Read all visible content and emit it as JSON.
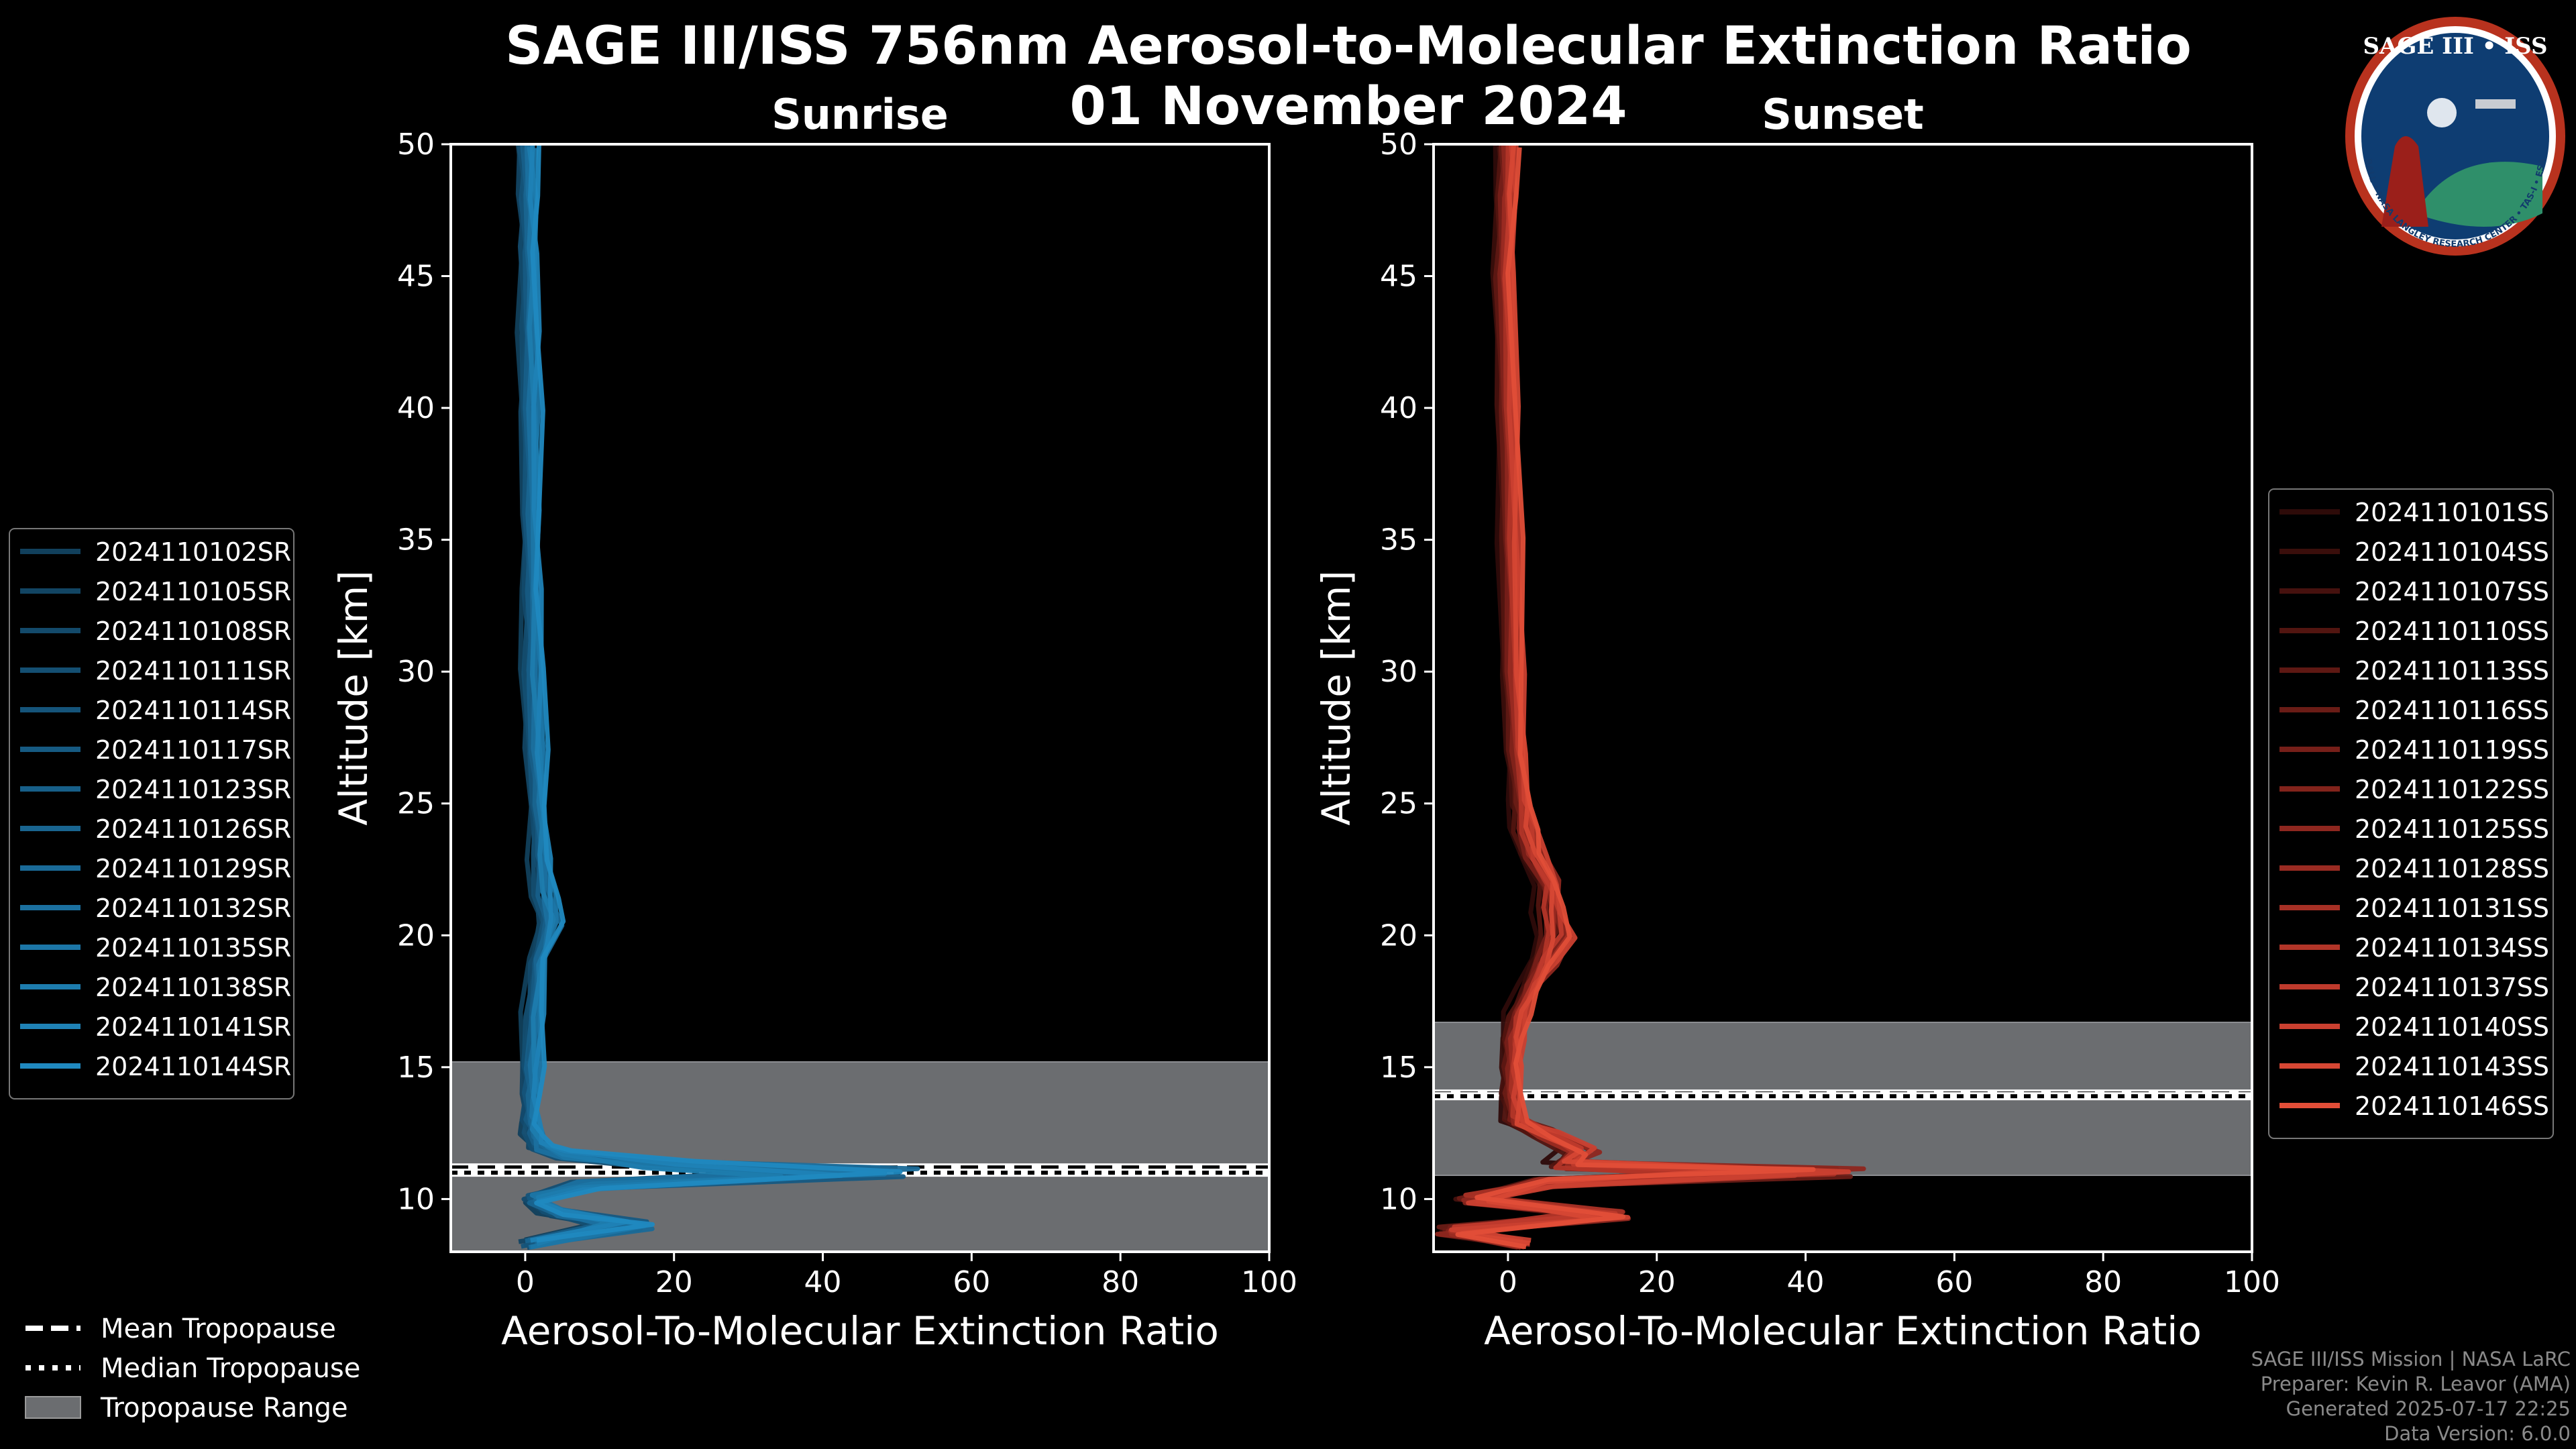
{
  "chart_data": {
    "title": "SAGE III/ISS 756nm Aerosol-to-Molecular Extinction Ratio",
    "subtitle": "01 November 2024",
    "panels": [
      {
        "name": "Sunrise",
        "type": "line",
        "xlabel": "Aerosol-To-Molecular Extinction Ratio",
        "ylabel": "Altitude [km]",
        "xlim": [
          -10,
          100
        ],
        "ylim": [
          8,
          50
        ],
        "xticks": [
          0,
          20,
          40,
          60,
          80,
          100
        ],
        "yticks": [
          10,
          15,
          20,
          25,
          30,
          35,
          40,
          45,
          50
        ],
        "tropopause_range": [
          8,
          15.2
        ],
        "mean_tropopause": 11.2,
        "median_tropopause": 11.0,
        "legend": [
          "2024110102SR",
          "2024110105SR",
          "2024110108SR",
          "2024110111SR",
          "2024110114SR",
          "2024110117SR",
          "2024110123SR",
          "2024110126SR",
          "2024110129SR",
          "2024110132SR",
          "2024110135SR",
          "2024110138SR",
          "2024110141SR",
          "2024110144SR"
        ],
        "series_colors": [
          "#11405c",
          "#124563",
          "#134a6b",
          "#144f72",
          "#15547a",
          "#165a82",
          "#175f89",
          "#196590",
          "#1a6a98",
          "#1b709f",
          "#1c76a7",
          "#1d7cae",
          "#1f82b6",
          "#2089c0"
        ],
        "profile": {
          "alt": [
            8.3,
            9.0,
            9.5,
            10.0,
            10.5,
            11.0,
            11.3,
            11.7,
            12.0,
            12.5,
            13.0,
            14.0,
            15.0,
            17.0,
            19.0,
            20.5,
            21.5,
            23.0,
            25.0,
            27.0,
            30.0,
            33.0,
            36.0,
            40.0,
            43.0,
            46.0,
            48.0,
            50.0
          ],
          "x": [
            0.5,
            14.0,
            4.0,
            1.0,
            8.0,
            44.0,
            20.0,
            5.0,
            2.0,
            1.2,
            0.8,
            0.9,
            1.0,
            1.3,
            1.8,
            3.5,
            2.8,
            2.2,
            1.8,
            1.5,
            1.2,
            1.0,
            0.9,
            0.8,
            0.7,
            0.6,
            0.5,
            0.4
          ]
        }
      },
      {
        "name": "Sunset",
        "type": "line",
        "xlabel": "Aerosol-To-Molecular Extinction Ratio",
        "ylabel": "Altitude [km]",
        "xlim": [
          -10,
          100
        ],
        "ylim": [
          8,
          50
        ],
        "xticks": [
          0,
          20,
          40,
          60,
          80,
          100
        ],
        "yticks": [
          10,
          15,
          20,
          25,
          30,
          35,
          40,
          45,
          50
        ],
        "tropopause_range": [
          10.9,
          16.7
        ],
        "mean_tropopause": 14.0,
        "median_tropopause": 13.9,
        "legend": [
          "2024110101SS",
          "2024110104SS",
          "2024110107SS",
          "2024110110SS",
          "2024110113SS",
          "2024110116SS",
          "2024110119SS",
          "2024110122SS",
          "2024110125SS",
          "2024110128SS",
          "2024110131SS",
          "2024110134SS",
          "2024110137SS",
          "2024110140SS",
          "2024110143SS",
          "2024110146SS"
        ],
        "series_colors": [
          "#2e0b09",
          "#3a0e0b",
          "#46110e",
          "#521510",
          "#5e1813",
          "#6a1c16",
          "#761f19",
          "#82231b",
          "#8e271f",
          "#9a2b22",
          "#a63025",
          "#b23528",
          "#be3a2c",
          "#ca4030",
          "#d64734",
          "#e24e38"
        ],
        "profile": {
          "alt": [
            8.3,
            8.8,
            9.4,
            10.0,
            10.6,
            11.0,
            11.3,
            11.8,
            12.5,
            13.0,
            14.0,
            15.0,
            16.0,
            17.0,
            18.0,
            19.0,
            20.0,
            21.0,
            22.0,
            23.0,
            24.0,
            25.0,
            27.0,
            30.0,
            35.0,
            40.0,
            45.0,
            48.0,
            50.0
          ],
          "x": [
            2.0,
            -8.0,
            14.0,
            -5.0,
            5.0,
            40.0,
            8.0,
            10.0,
            5.0,
            1.0,
            0.5,
            0.6,
            0.8,
            1.5,
            3.0,
            5.0,
            7.0,
            6.0,
            5.5,
            3.5,
            2.5,
            1.8,
            1.2,
            0.8,
            0.4,
            0.0,
            -0.5,
            -0.2,
            0.0
          ]
        }
      }
    ],
    "shared_legend": [
      {
        "label": "Mean Tropopause",
        "style": "dashed"
      },
      {
        "label": "Median Tropopause",
        "style": "dotted"
      },
      {
        "label": "Tropopause Range",
        "style": "patch"
      }
    ]
  },
  "badge": {
    "title": "SAGE III • ISS",
    "ring_text": "BALL • NASA LANGLEY RESEARCH CENTER • TAS-I • ESA"
  },
  "footer": {
    "line1": "SAGE III/ISS Mission | NASA LaRC",
    "line2": "Preparer: Kevin R. Leavor (AMA)",
    "line3": "Generated 2025-07-17 22:25",
    "line4": "Data Version: 6.0.0"
  },
  "colors": {
    "background": "#000000",
    "range_fill": "#6b6d70",
    "sunrise": "#1f86c0",
    "sunset": "#e0503a"
  }
}
